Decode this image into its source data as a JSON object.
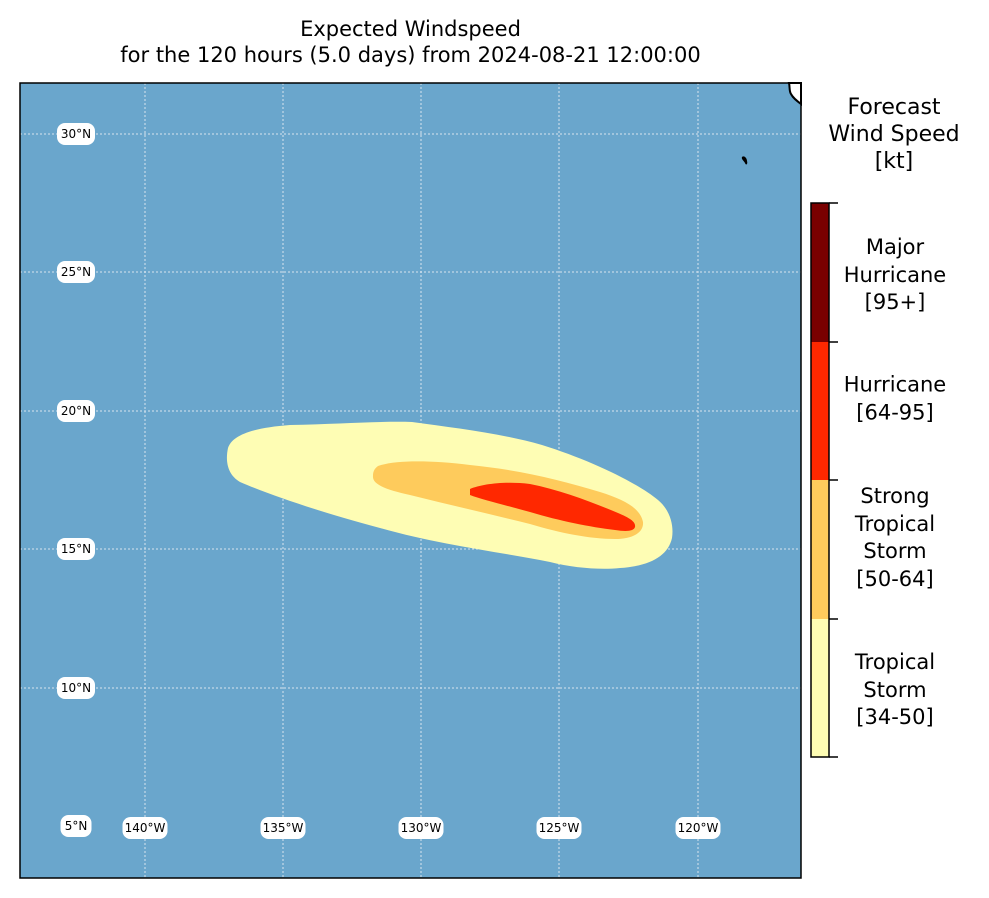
{
  "title": {
    "line1": "Expected Windspeed",
    "line2": "for the 120 hours (5.0 days) from 2024-08-21 12:00:00"
  },
  "map": {
    "ocean_color": "#6aa6cc",
    "land_color": "#ffffff",
    "grid_color": "#d8e4ee",
    "lon_labels": [
      "140°W",
      "135°W",
      "130°W",
      "125°W",
      "120°W"
    ],
    "lat_labels": [
      "5°N",
      "10°N",
      "15°N",
      "20°N",
      "25°N",
      "30°N"
    ]
  },
  "wind_field": {
    "tropical_storm_color": "#fefdb4",
    "strong_tropical_storm_color": "#fecb5c",
    "hurricane_color": "#ff2800",
    "major_hurricane_color": "#7a0000"
  },
  "legend": {
    "title_line1": "Forecast",
    "title_line2": "Wind Speed",
    "title_line3": "[kt]",
    "categories": [
      {
        "lines": [
          "Major",
          "Hurricane",
          "[95+]"
        ],
        "color": "#7a0000"
      },
      {
        "lines": [
          "Hurricane",
          "[64-95]"
        ],
        "color": "#ff2800"
      },
      {
        "lines": [
          "Strong",
          "Tropical",
          "Storm",
          "[50-64]"
        ],
        "color": "#fecb5c"
      },
      {
        "lines": [
          "Tropical",
          "Storm",
          "[34-50]"
        ],
        "color": "#fefdb4"
      }
    ]
  }
}
